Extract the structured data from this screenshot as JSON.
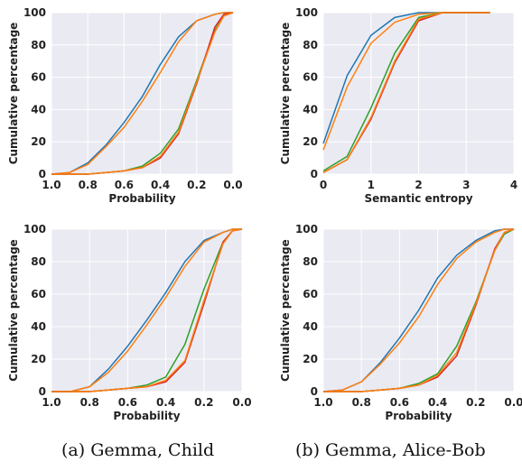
{
  "colors": {
    "blue": "#1f77b4",
    "orange": "#ff7f0e",
    "green": "#2ca02c",
    "red": "#d62728"
  },
  "captions": {
    "a": "(a) Gemma, Child",
    "b": "(b) Gemma, Alice-Bob"
  },
  "chart_data": [
    {
      "type": "line",
      "xlabel": "Probability",
      "ylabel": "Cumulative percentage",
      "xlim": [
        1.0,
        0.0
      ],
      "ylim": [
        0,
        100
      ],
      "x_reversed": true,
      "xticks": [
        "1.0",
        "0.8",
        "0.6",
        "0.4",
        "0.2",
        "0.0"
      ],
      "yticks": [
        "0",
        "20",
        "40",
        "60",
        "80",
        "100"
      ],
      "grid": true,
      "series": [
        {
          "color": "#1f77b4",
          "x": [
            1.0,
            0.9,
            0.8,
            0.7,
            0.6,
            0.5,
            0.4,
            0.3,
            0.2,
            0.1,
            0.05,
            0.0
          ],
          "y": [
            0,
            1,
            7,
            18,
            32,
            48,
            68,
            85,
            95,
            99,
            100,
            100
          ]
        },
        {
          "color": "#ff7f0e",
          "x": [
            1.0,
            0.9,
            0.8,
            0.7,
            0.6,
            0.5,
            0.4,
            0.3,
            0.2,
            0.1,
            0.05,
            0.0
          ],
          "y": [
            0,
            1,
            6,
            17,
            29,
            45,
            63,
            82,
            95,
            99,
            100,
            100
          ]
        },
        {
          "color": "#2ca02c",
          "x": [
            1.0,
            0.8,
            0.7,
            0.6,
            0.5,
            0.4,
            0.3,
            0.2,
            0.1,
            0.05,
            0.0
          ],
          "y": [
            0,
            0,
            1,
            2,
            5,
            13,
            28,
            58,
            89,
            98,
            100
          ]
        },
        {
          "color": "#d62728",
          "x": [
            1.0,
            0.8,
            0.7,
            0.6,
            0.5,
            0.4,
            0.3,
            0.2,
            0.1,
            0.05,
            0.0
          ],
          "y": [
            0,
            0,
            1,
            2,
            4,
            10,
            25,
            56,
            91,
            99,
            100
          ]
        },
        {
          "color": "#ff7f0e",
          "x": [
            1.0,
            0.8,
            0.7,
            0.6,
            0.5,
            0.4,
            0.3,
            0.2,
            0.1,
            0.05,
            0.0
          ],
          "y": [
            0,
            0,
            1,
            2,
            4,
            11,
            26,
            57,
            88,
            98,
            100
          ]
        }
      ]
    },
    {
      "type": "line",
      "xlabel": "Semantic entropy",
      "ylabel": "Cumulative percentage",
      "xlim": [
        0,
        4
      ],
      "ylim": [
        0,
        100
      ],
      "x_reversed": false,
      "xticks": [
        "0",
        "1",
        "2",
        "3",
        "4"
      ],
      "yticks": [
        "0",
        "20",
        "40",
        "60",
        "80",
        "100"
      ],
      "grid": true,
      "series": [
        {
          "color": "#1f77b4",
          "x": [
            0,
            0.5,
            1.0,
            1.5,
            2.0,
            2.5,
            3.0,
            3.5
          ],
          "y": [
            19,
            61,
            86,
            97,
            100,
            100,
            100,
            100
          ]
        },
        {
          "color": "#ff7f0e",
          "x": [
            0,
            0.5,
            1.0,
            1.5,
            2.0,
            2.5,
            3.0,
            3.5
          ],
          "y": [
            15,
            54,
            81,
            94,
            99,
            100,
            100,
            100
          ]
        },
        {
          "color": "#2ca02c",
          "x": [
            0,
            0.5,
            1.0,
            1.5,
            2.0,
            2.5,
            3.0,
            3.5
          ],
          "y": [
            2,
            11,
            41,
            75,
            97,
            100,
            100,
            100
          ]
        },
        {
          "color": "#d62728",
          "x": [
            0,
            0.5,
            1.0,
            1.5,
            2.0,
            2.5,
            3.0,
            3.5
          ],
          "y": [
            1,
            9,
            34,
            69,
            95,
            100,
            100,
            100
          ]
        },
        {
          "color": "#ff7f0e",
          "x": [
            0,
            0.5,
            1.0,
            1.5,
            2.0,
            2.5,
            3.0,
            3.5
          ],
          "y": [
            1,
            9,
            35,
            70,
            96,
            100,
            100,
            100
          ]
        }
      ]
    },
    {
      "type": "line",
      "xlabel": "Probability",
      "ylabel": "Cumulative percentage",
      "xlim": [
        1.0,
        0.0
      ],
      "ylim": [
        0,
        100
      ],
      "x_reversed": true,
      "xticks": [
        "1.0",
        "0.8",
        "0.6",
        "0.4",
        "0.2",
        "0.0"
      ],
      "yticks": [
        "0",
        "20",
        "40",
        "60",
        "80",
        "100"
      ],
      "grid": true,
      "series": [
        {
          "color": "#1f77b4",
          "x": [
            1.0,
            0.9,
            0.8,
            0.7,
            0.6,
            0.5,
            0.4,
            0.3,
            0.2,
            0.1,
            0.05,
            0.0
          ],
          "y": [
            0,
            0,
            3,
            14,
            28,
            44,
            61,
            80,
            93,
            98,
            100,
            100
          ]
        },
        {
          "color": "#ff7f0e",
          "x": [
            1.0,
            0.9,
            0.8,
            0.7,
            0.6,
            0.5,
            0.4,
            0.3,
            0.2,
            0.1,
            0.05,
            0.0
          ],
          "y": [
            0,
            0,
            3,
            12,
            25,
            41,
            58,
            77,
            92,
            98,
            100,
            100
          ]
        },
        {
          "color": "#2ca02c",
          "x": [
            1.0,
            0.8,
            0.7,
            0.6,
            0.5,
            0.4,
            0.3,
            0.2,
            0.1,
            0.05,
            0.0
          ],
          "y": [
            0,
            0,
            1,
            2,
            4,
            9,
            29,
            63,
            92,
            99,
            100
          ]
        },
        {
          "color": "#d62728",
          "x": [
            1.0,
            0.8,
            0.7,
            0.6,
            0.5,
            0.4,
            0.3,
            0.2,
            0.1,
            0.05,
            0.0
          ],
          "y": [
            0,
            0,
            1,
            2,
            3,
            6,
            18,
            54,
            92,
            99,
            100
          ]
        },
        {
          "color": "#ff7f0e",
          "x": [
            1.0,
            0.8,
            0.7,
            0.6,
            0.5,
            0.4,
            0.3,
            0.2,
            0.1,
            0.05,
            0.0
          ],
          "y": [
            0,
            0,
            1,
            2,
            3,
            7,
            19,
            56,
            91,
            99,
            100
          ]
        }
      ]
    },
    {
      "type": "line",
      "xlabel": "Probability",
      "ylabel": "Cumulative percentage",
      "xlim": [
        1.0,
        0.0
      ],
      "ylim": [
        0,
        100
      ],
      "x_reversed": true,
      "xticks": [
        "1.0",
        "0.8",
        "0.6",
        "0.4",
        "0.2",
        "0.0"
      ],
      "yticks": [
        "0",
        "20",
        "40",
        "60",
        "80",
        "100"
      ],
      "grid": true,
      "series": [
        {
          "color": "#1f77b4",
          "x": [
            1.0,
            0.9,
            0.8,
            0.7,
            0.6,
            0.5,
            0.4,
            0.3,
            0.2,
            0.1,
            0.05,
            0.0
          ],
          "y": [
            0,
            1,
            6,
            18,
            33,
            50,
            70,
            84,
            93,
            99,
            100,
            100
          ]
        },
        {
          "color": "#ff7f0e",
          "x": [
            1.0,
            0.9,
            0.8,
            0.7,
            0.6,
            0.5,
            0.4,
            0.3,
            0.2,
            0.1,
            0.05,
            0.0
          ],
          "y": [
            0,
            1,
            6,
            17,
            30,
            46,
            66,
            82,
            92,
            98,
            100,
            100
          ]
        },
        {
          "color": "#2ca02c",
          "x": [
            1.0,
            0.8,
            0.7,
            0.6,
            0.5,
            0.4,
            0.3,
            0.2,
            0.1,
            0.05,
            0.0
          ],
          "y": [
            0,
            0,
            1,
            2,
            5,
            11,
            28,
            55,
            87,
            97,
            100
          ]
        },
        {
          "color": "#d62728",
          "x": [
            1.0,
            0.8,
            0.7,
            0.6,
            0.5,
            0.4,
            0.3,
            0.2,
            0.1,
            0.05,
            0.0
          ],
          "y": [
            0,
            0,
            1,
            2,
            4,
            9,
            22,
            53,
            88,
            98,
            100
          ]
        },
        {
          "color": "#ff7f0e",
          "x": [
            1.0,
            0.8,
            0.7,
            0.6,
            0.5,
            0.4,
            0.3,
            0.2,
            0.1,
            0.05,
            0.0
          ],
          "y": [
            0,
            0,
            1,
            2,
            4,
            10,
            24,
            54,
            87,
            98,
            100
          ]
        }
      ]
    }
  ]
}
